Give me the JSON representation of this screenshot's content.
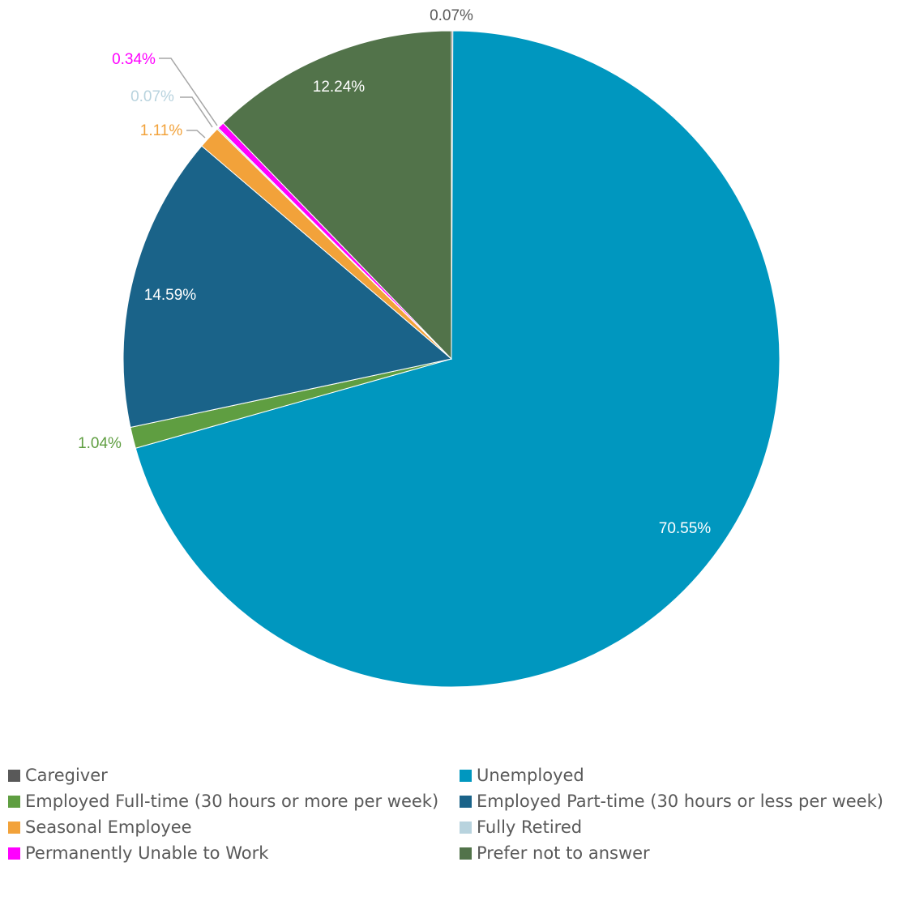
{
  "chart_data": {
    "type": "pie",
    "title": "",
    "start_angle_deg": 0,
    "direction": "clockwise",
    "legend_position": "bottom",
    "slices": [
      {
        "name": "Caregiver",
        "value": 0.07,
        "label": "0.07%",
        "color": "#595959",
        "label_color": "#595959"
      },
      {
        "name": "Unemployed",
        "value": 70.55,
        "label": "70.55%",
        "color": "#0097BF",
        "label_color": "#FFFFFF"
      },
      {
        "name": "Employed Full-time (30 hours or more per week)",
        "value": 1.04,
        "label": "1.04%",
        "color": "#5F9E41",
        "label_color": "#5F9E41"
      },
      {
        "name": "Employed Part-time (30 hours or less per week)",
        "value": 14.59,
        "label": "14.59%",
        "color": "#1A6389",
        "label_color": "#FFFFFF"
      },
      {
        "name": "Seasonal Employee",
        "value": 1.11,
        "label": "1.11%",
        "color": "#F2A23A",
        "label_color": "#F2A23A"
      },
      {
        "name": "Fully Retired",
        "value": 0.07,
        "label": "0.07%",
        "color": "#B8D3DE",
        "label_color": "#B8D3DE"
      },
      {
        "name": "Permanently Unable to Work",
        "value": 0.34,
        "label": "0.34%",
        "color": "#FF00FF",
        "label_color": "#FF00FF"
      },
      {
        "name": "Prefer not to answer",
        "value": 12.24,
        "label": "12.24%",
        "color": "#52734A",
        "label_color": "#FFFFFF"
      }
    ]
  }
}
